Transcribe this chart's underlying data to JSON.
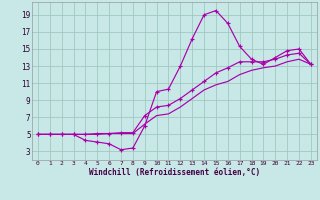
{
  "xlabel": "Windchill (Refroidissement éolien,°C)",
  "bg_color": "#c8e8e8",
  "grid_color": "#a0c8c0",
  "line_color": "#aa00aa",
  "xlim": [
    -0.5,
    23.5
  ],
  "ylim": [
    2.0,
    20.5
  ],
  "xticks": [
    0,
    1,
    2,
    3,
    4,
    5,
    6,
    7,
    8,
    9,
    10,
    11,
    12,
    13,
    14,
    15,
    16,
    17,
    18,
    19,
    20,
    21,
    22,
    23
  ],
  "yticks": [
    3,
    5,
    7,
    9,
    11,
    13,
    15,
    17,
    19
  ],
  "line1_x": [
    0,
    1,
    2,
    3,
    4,
    5,
    6,
    7,
    8,
    9,
    10,
    11,
    12,
    13,
    14,
    15,
    16,
    17,
    18,
    19,
    20,
    21,
    22,
    23
  ],
  "line1_y": [
    5.0,
    5.0,
    5.0,
    5.0,
    4.3,
    4.1,
    3.9,
    3.2,
    3.4,
    6.0,
    10.0,
    10.3,
    13.0,
    16.2,
    19.0,
    19.5,
    18.0,
    15.3,
    13.8,
    13.2,
    14.0,
    14.8,
    15.0,
    13.2
  ],
  "line2_x": [
    0,
    1,
    2,
    3,
    4,
    5,
    6,
    7,
    8,
    9,
    10,
    11,
    12,
    13,
    14,
    15,
    16,
    17,
    18,
    19,
    20,
    21,
    22,
    23
  ],
  "line2_y": [
    5.0,
    5.0,
    5.0,
    5.0,
    5.0,
    5.1,
    5.1,
    5.2,
    5.2,
    7.2,
    8.2,
    8.4,
    9.2,
    10.2,
    11.2,
    12.2,
    12.8,
    13.5,
    13.5,
    13.5,
    13.8,
    14.3,
    14.5,
    13.2
  ],
  "line3_x": [
    0,
    1,
    2,
    3,
    4,
    5,
    6,
    7,
    8,
    9,
    10,
    11,
    12,
    13,
    14,
    15,
    16,
    17,
    18,
    19,
    20,
    21,
    22,
    23
  ],
  "line3_y": [
    5.0,
    5.0,
    5.0,
    5.0,
    5.0,
    5.0,
    5.1,
    5.1,
    5.1,
    6.2,
    7.2,
    7.4,
    8.2,
    9.2,
    10.2,
    10.8,
    11.2,
    12.0,
    12.5,
    12.8,
    13.0,
    13.5,
    13.8,
    13.2
  ]
}
